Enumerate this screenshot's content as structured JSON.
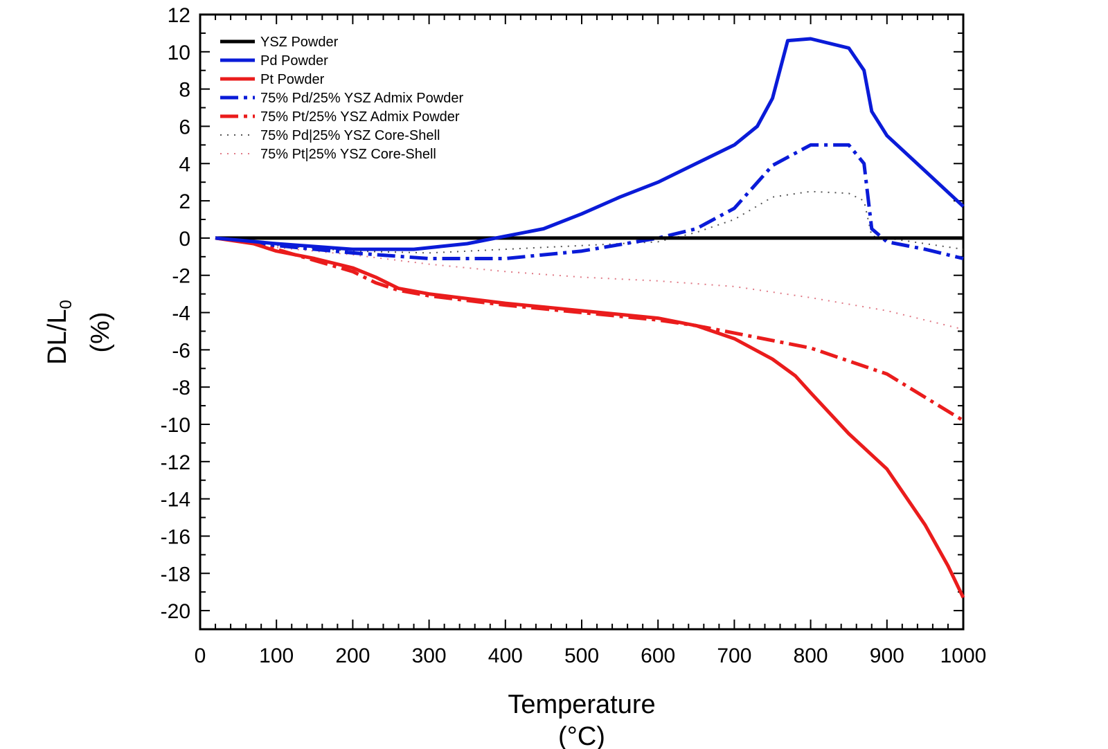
{
  "chart_data": {
    "type": "line",
    "xlabel": "Temperature",
    "xunit": "(°C)",
    "ylabel": "DL/L",
    "ylabel_sub": "0",
    "yunit": "(%)",
    "xlim": [
      0,
      1000
    ],
    "ylim": [
      -21,
      12
    ],
    "xticks": [
      0,
      100,
      200,
      300,
      400,
      500,
      600,
      700,
      800,
      900,
      1000
    ],
    "yticks": [
      12,
      10,
      8,
      6,
      4,
      2,
      0,
      -2,
      -4,
      -6,
      -8,
      -10,
      -12,
      -14,
      -16,
      -18,
      -20
    ],
    "grid": false,
    "legend_position": "top-left",
    "series": [
      {
        "name": "YSZ Powder",
        "color": "#000000",
        "style": "solid",
        "x": [
          20,
          100,
          200,
          300,
          400,
          500,
          600,
          700,
          800,
          900,
          1000
        ],
        "y": [
          0,
          0,
          0,
          0,
          0,
          0,
          0,
          0,
          0,
          0,
          0
        ]
      },
      {
        "name": "Pd Powder",
        "color": "#0a1bd8",
        "style": "solid",
        "x": [
          20,
          100,
          200,
          280,
          350,
          400,
          450,
          500,
          550,
          600,
          650,
          700,
          730,
          750,
          770,
          800,
          850,
          870,
          880,
          900,
          950,
          1000
        ],
        "y": [
          0,
          -0.3,
          -0.6,
          -0.6,
          -0.3,
          0.1,
          0.5,
          1.3,
          2.2,
          3.0,
          4.0,
          5.0,
          6.0,
          7.5,
          10.6,
          10.7,
          10.2,
          9.0,
          6.8,
          5.5,
          3.6,
          1.7
        ]
      },
      {
        "name": "Pt Powder",
        "color": "#ea1c1c",
        "style": "solid",
        "x": [
          20,
          70,
          100,
          150,
          200,
          230,
          260,
          300,
          400,
          500,
          600,
          650,
          700,
          750,
          780,
          800,
          850,
          900,
          950,
          980,
          1000
        ],
        "y": [
          0,
          -0.3,
          -0.7,
          -1.1,
          -1.6,
          -2.1,
          -2.7,
          -3.0,
          -3.5,
          -3.9,
          -4.3,
          -4.7,
          -5.4,
          -6.5,
          -7.4,
          -8.3,
          -10.5,
          -12.4,
          -15.4,
          -17.6,
          -19.3
        ]
      },
      {
        "name": "75% Pd/25% YSZ Admix Powder",
        "color": "#0a1bd8",
        "style": "dashdot",
        "x": [
          20,
          100,
          200,
          300,
          400,
          500,
          600,
          650,
          700,
          750,
          800,
          850,
          870,
          880,
          900,
          950,
          1000
        ],
        "y": [
          0,
          -0.4,
          -0.8,
          -1.1,
          -1.1,
          -0.7,
          0,
          0.5,
          1.6,
          3.9,
          5.0,
          5.0,
          4.0,
          0.5,
          -0.2,
          -0.6,
          -1.1
        ]
      },
      {
        "name": "75% Pt/25% YSZ Admix Powder",
        "color": "#ea1c1c",
        "style": "dashdot",
        "x": [
          20,
          70,
          100,
          150,
          200,
          230,
          260,
          300,
          400,
          500,
          600,
          650,
          700,
          800,
          900,
          1000
        ],
        "y": [
          0,
          -0.2,
          -0.6,
          -1.2,
          -1.8,
          -2.4,
          -2.8,
          -3.1,
          -3.6,
          -4.0,
          -4.4,
          -4.7,
          -5.1,
          -5.9,
          -7.3,
          -9.8
        ]
      },
      {
        "name": "75% Pd|25% YSZ Core-Shell",
        "color": "#555555",
        "style": "dotted",
        "x": [
          20,
          100,
          200,
          300,
          400,
          500,
          600,
          650,
          700,
          750,
          800,
          850,
          870,
          880,
          900,
          950,
          1000
        ],
        "y": [
          0,
          -0.4,
          -0.7,
          -0.8,
          -0.6,
          -0.4,
          -0.2,
          0.3,
          1.0,
          2.2,
          2.5,
          2.4,
          2.0,
          0.1,
          0,
          -0.3,
          -0.6
        ]
      },
      {
        "name": "75% Pt|25% YSZ Core-Shell",
        "color": "#e07a87",
        "style": "dotted",
        "x": [
          20,
          100,
          200,
          300,
          400,
          500,
          600,
          700,
          800,
          900,
          1000
        ],
        "y": [
          0,
          -0.5,
          -0.9,
          -1.4,
          -1.8,
          -2.1,
          -2.3,
          -2.6,
          -3.2,
          -3.9,
          -4.9
        ]
      }
    ]
  }
}
